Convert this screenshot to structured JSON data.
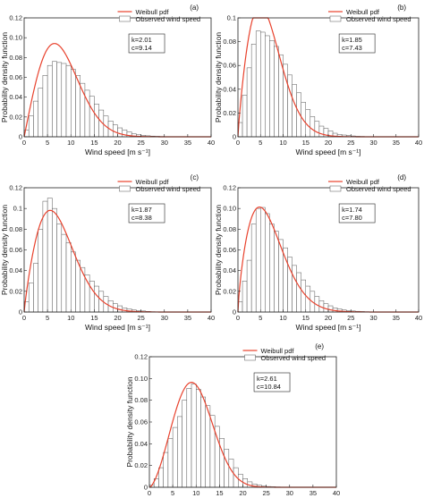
{
  "chart_data": [
    {
      "type": "bar",
      "panel_label": "(a)",
      "xlabel": "Wind speed [m s⁻¹]",
      "ylabel": "Probability density function",
      "xlim": [
        0,
        40
      ],
      "ylim": [
        0,
        0.12
      ],
      "x_ticks": [
        0,
        5,
        10,
        15,
        20,
        25,
        30,
        35,
        40
      ],
      "x_tick_labels": [
        "0",
        "5",
        "10",
        "15",
        "20",
        "25",
        "30",
        "35",
        "40"
      ],
      "y_ticks": [
        0,
        0.02,
        0.04,
        0.06,
        0.08,
        0.1,
        0.12
      ],
      "y_tick_labels": [
        "0",
        "0.02",
        "0.04",
        "0.06",
        "0.08",
        "0.10",
        "0.12"
      ],
      "legend": [
        "Weibull pdf",
        "Observed wind speed"
      ],
      "legend_position": "top-right",
      "params": [
        "k=2.01",
        "c=9.14"
      ],
      "weibull": {
        "k": 2.01,
        "c": 9.14,
        "color": "#e8412c"
      },
      "bin_width": 1,
      "bin_starts": [
        0,
        1,
        2,
        3,
        4,
        5,
        6,
        7,
        8,
        9,
        10,
        11,
        12,
        13,
        14,
        15,
        16,
        17,
        18,
        19,
        20,
        21,
        22,
        23,
        24,
        25,
        26,
        27,
        28,
        29
      ],
      "values": [
        0.007,
        0.021,
        0.036,
        0.049,
        0.062,
        0.072,
        0.076,
        0.075,
        0.074,
        0.072,
        0.068,
        0.062,
        0.054,
        0.047,
        0.041,
        0.033,
        0.027,
        0.021,
        0.016,
        0.012,
        0.009,
        0.007,
        0.005,
        0.003,
        0.002,
        0.0015,
        0.001,
        0.0007,
        0.0005,
        0.0003
      ]
    },
    {
      "type": "bar",
      "panel_label": "(b)",
      "xlabel": "Wind speed [m s⁻¹]",
      "ylabel": "Probability density function",
      "xlim": [
        0,
        40
      ],
      "ylim": [
        0,
        0.1
      ],
      "x_ticks": [
        0,
        5,
        10,
        15,
        20,
        25,
        30,
        35,
        40
      ],
      "x_tick_labels": [
        "0",
        "5",
        "10",
        "15",
        "20",
        "25",
        "30",
        "35",
        "40"
      ],
      "y_ticks": [
        0,
        0.02,
        0.04,
        0.06,
        0.08,
        0.1
      ],
      "y_tick_labels": [
        "0",
        "0.02",
        "0.04",
        "0.06",
        "0.08",
        "0.1"
      ],
      "legend": [
        "Weibull pdf",
        "Observed wind speed"
      ],
      "legend_position": "top-right",
      "params": [
        "k=1.85",
        "c=7.43"
      ],
      "weibull": {
        "k": 1.85,
        "c": 7.43,
        "color": "#e8412c"
      },
      "bin_width": 1,
      "bin_starts": [
        0,
        1,
        2,
        3,
        4,
        5,
        6,
        7,
        8,
        9,
        10,
        11,
        12,
        13,
        14,
        15,
        16,
        17,
        18,
        19,
        20,
        21,
        22,
        23,
        24,
        25,
        26,
        27
      ],
      "values": [
        0.012,
        0.035,
        0.058,
        0.078,
        0.089,
        0.088,
        0.085,
        0.081,
        0.076,
        0.069,
        0.061,
        0.052,
        0.044,
        0.037,
        0.029,
        0.023,
        0.017,
        0.013,
        0.009,
        0.007,
        0.005,
        0.003,
        0.002,
        0.0015,
        0.001,
        0.0007,
        0.0004,
        0.0003
      ]
    },
    {
      "type": "bar",
      "panel_label": "(c)",
      "xlabel": "Wind speed [m s⁻¹]",
      "ylabel": "Probability density function",
      "xlim": [
        0,
        40
      ],
      "ylim": [
        0,
        0.12
      ],
      "x_ticks": [
        0,
        5,
        10,
        15,
        20,
        25,
        30,
        35,
        40
      ],
      "x_tick_labels": [
        "0",
        "5",
        "10",
        "15",
        "20",
        "25",
        "30",
        "35",
        "40"
      ],
      "y_ticks": [
        0,
        0.02,
        0.04,
        0.06,
        0.08,
        0.1,
        0.12
      ],
      "y_tick_labels": [
        "0",
        "0.02",
        "0.04",
        "0.06",
        "0.08",
        "0.1",
        "0.12"
      ],
      "legend": [
        "Weibull pdf",
        "Observed wind speed"
      ],
      "legend_position": "top-right",
      "params": [
        "k=1.87",
        "c=8.38"
      ],
      "weibull": {
        "k": 1.87,
        "c": 8.38,
        "color": "#e8412c"
      },
      "bin_width": 1,
      "bin_starts": [
        0,
        1,
        2,
        3,
        4,
        5,
        6,
        7,
        8,
        9,
        10,
        11,
        12,
        13,
        14,
        15,
        16,
        17,
        18,
        19,
        20,
        21,
        22,
        23,
        24,
        25,
        26,
        27
      ],
      "values": [
        0.01,
        0.028,
        0.047,
        0.08,
        0.107,
        0.11,
        0.1,
        0.085,
        0.075,
        0.067,
        0.058,
        0.05,
        0.043,
        0.036,
        0.03,
        0.025,
        0.02,
        0.015,
        0.011,
        0.008,
        0.006,
        0.004,
        0.003,
        0.002,
        0.0015,
        0.001,
        0.0006,
        0.0003
      ]
    },
    {
      "type": "bar",
      "panel_label": "(d)",
      "xlabel": "Wind speed [m s⁻¹]",
      "ylabel": "Probability density function",
      "xlim": [
        0,
        40
      ],
      "ylim": [
        0,
        0.12
      ],
      "x_ticks": [
        0,
        5,
        10,
        15,
        20,
        25,
        30,
        35,
        40
      ],
      "x_tick_labels": [
        "0",
        "5",
        "10",
        "15",
        "20",
        "25",
        "30",
        "35",
        "40"
      ],
      "y_ticks": [
        0,
        0.02,
        0.04,
        0.06,
        0.08,
        0.1,
        0.12
      ],
      "y_tick_labels": [
        "0",
        "0.02",
        "0.04",
        "0.06",
        "0.08",
        "0.10",
        "0.12"
      ],
      "legend": [
        "Weibull pdf",
        "Observed wind speed"
      ],
      "legend_position": "top-right",
      "params": [
        "k=1.74",
        "c=7.80"
      ],
      "weibull": {
        "k": 1.74,
        "c": 7.8,
        "color": "#e8412c"
      },
      "bin_width": 1,
      "bin_starts": [
        0,
        1,
        2,
        3,
        4,
        5,
        6,
        7,
        8,
        9,
        10,
        11,
        12,
        13,
        14,
        15,
        16,
        17,
        18,
        19,
        20,
        21,
        22,
        23,
        24,
        25,
        26,
        27,
        28
      ],
      "values": [
        0.01,
        0.03,
        0.05,
        0.085,
        0.1,
        0.101,
        0.095,
        0.085,
        0.078,
        0.07,
        0.062,
        0.053,
        0.045,
        0.038,
        0.031,
        0.025,
        0.02,
        0.015,
        0.011,
        0.008,
        0.006,
        0.004,
        0.003,
        0.002,
        0.0015,
        0.001,
        0.0007,
        0.0005,
        0.0003
      ]
    },
    {
      "type": "bar",
      "panel_label": "(e)",
      "xlabel": "Wind speed [m s⁻¹]",
      "ylabel": "Probability density function",
      "xlim": [
        0,
        40
      ],
      "ylim": [
        0,
        0.12
      ],
      "x_ticks": [
        0,
        5,
        10,
        15,
        20,
        25,
        30,
        35,
        40
      ],
      "x_tick_labels": [
        "0",
        "5",
        "10",
        "15",
        "20",
        "25",
        "30",
        "35",
        "40"
      ],
      "y_ticks": [
        0,
        0.02,
        0.04,
        0.06,
        0.08,
        0.1,
        0.12
      ],
      "y_tick_labels": [
        "0",
        "0.02",
        "0.04",
        "0.06",
        "0.08",
        "0.10",
        "0.12"
      ],
      "legend": [
        "Weibull pdf",
        "Observed wind speed"
      ],
      "legend_position": "top-right",
      "params": [
        "k=2.61",
        "c=10.84"
      ],
      "weibull": {
        "k": 2.61,
        "c": 10.84,
        "color": "#e8412c"
      },
      "bin_width": 1,
      "bin_starts": [
        0,
        1,
        2,
        3,
        4,
        5,
        6,
        7,
        8,
        9,
        10,
        11,
        12,
        13,
        14,
        15,
        16,
        17,
        18,
        19,
        20,
        21,
        22,
        23,
        24,
        25,
        26,
        27,
        28,
        29
      ],
      "values": [
        0.002,
        0.008,
        0.018,
        0.032,
        0.045,
        0.055,
        0.065,
        0.08,
        0.091,
        0.095,
        0.09,
        0.083,
        0.075,
        0.066,
        0.056,
        0.045,
        0.035,
        0.026,
        0.018,
        0.012,
        0.008,
        0.005,
        0.003,
        0.002,
        0.001,
        0.0007,
        0.0005,
        0.0003,
        0.0002,
        0.0001
      ]
    }
  ]
}
